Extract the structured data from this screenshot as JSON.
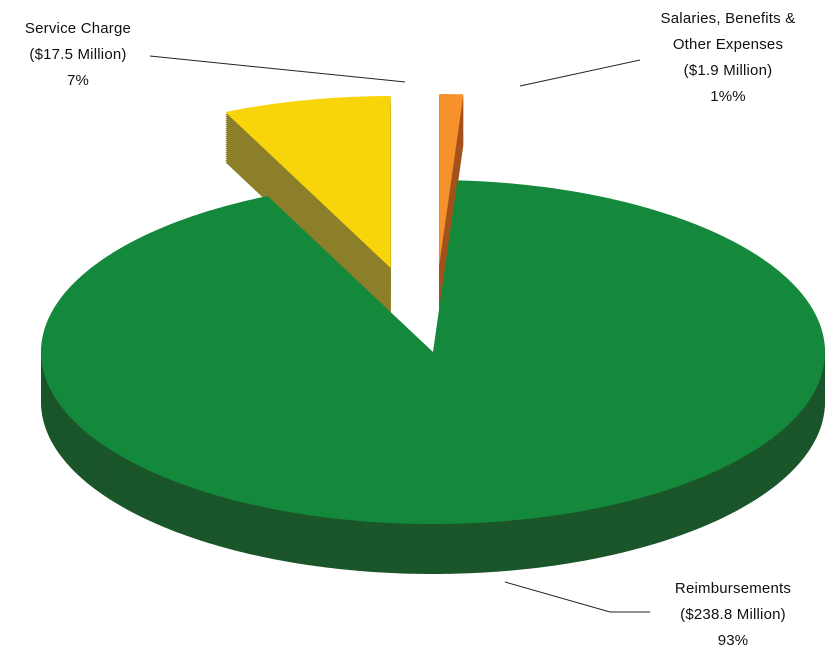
{
  "chart_data": {
    "type": "pie3d",
    "categories": [
      "Salaries, Benefits & Other Expenses",
      "Reimbursements",
      "Service Charge"
    ],
    "values": [
      1,
      93,
      7
    ],
    "value_labels": [
      "1%%",
      "93%",
      "7%"
    ],
    "amounts": [
      1.9,
      238.8,
      17.5
    ],
    "amount_labels": [
      "($1.9 Million)",
      "($238.8 Million)",
      "($17.5 Million)"
    ],
    "colors": [
      "#f7912b",
      "#14893b",
      "#f8d50b"
    ],
    "side_colors": [
      "#a4521d",
      "#1b552a",
      "#8c7f2a"
    ],
    "exploded": [
      true,
      false,
      true
    ]
  }
}
